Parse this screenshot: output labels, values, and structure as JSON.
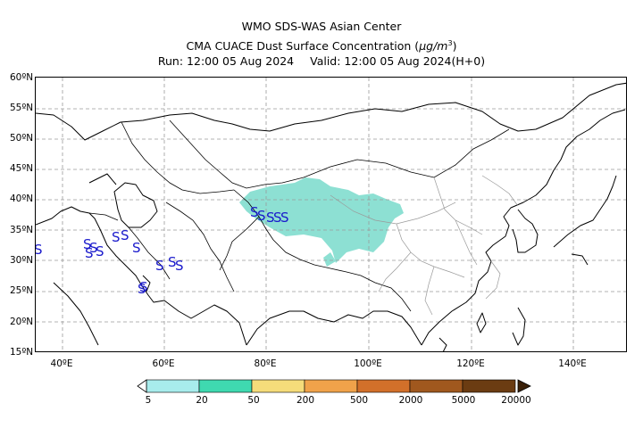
{
  "header": {
    "line1": "WMO SDS-WAS Asian Center",
    "line2_prefix": "CMA CUACE Dust Surface Concentration (",
    "line2_unit": "μg/m",
    "line2_sup": "3",
    "line2_suffix": ")",
    "run_label": "Run: 12:00 05 Aug 2024",
    "valid_label": "Valid: 12:00 05 Aug 2024(H+0)"
  },
  "map": {
    "lat_labels": [
      "60ºN",
      "55ºN",
      "50ºN",
      "45ºN",
      "40ºN",
      "35ºN",
      "30ºN",
      "25ºN",
      "20ºN",
      "15ºN"
    ],
    "lon_labels": [
      "40ºE",
      "60ºE",
      "80ºE",
      "100ºE",
      "120ºE",
      "140ºE"
    ],
    "dust_marker_symbol": "S",
    "dust_color": "#8de0d3",
    "marker_color": "#1a1acc"
  },
  "colorbar": {
    "labels": [
      "5",
      "20",
      "50",
      "200",
      "500",
      "2000",
      "5000",
      "20000"
    ],
    "colors": [
      "#a8ecec",
      "#3fd9b0",
      "#f5dc7a",
      "#f0a24a",
      "#d2702a",
      "#a0581e",
      "#6b3c12",
      "#3a2008"
    ]
  }
}
